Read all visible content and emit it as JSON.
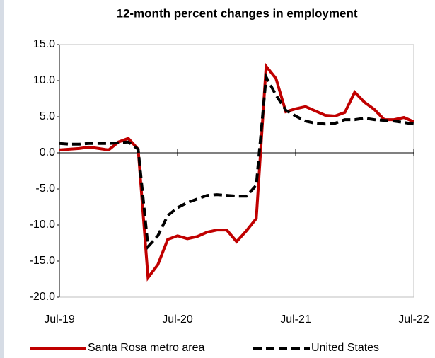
{
  "chart_data": {
    "type": "line",
    "title": "12-month percent changes in employment",
    "categories": [
      "Jul-19",
      null,
      null,
      null,
      null,
      null,
      null,
      null,
      null,
      null,
      null,
      null,
      "Jul-20",
      null,
      null,
      null,
      null,
      null,
      null,
      null,
      null,
      null,
      null,
      null,
      "Jul-21",
      null,
      null,
      null,
      null,
      null,
      null,
      null,
      null,
      null,
      null,
      null,
      "Jul-22"
    ],
    "series": [
      {
        "name": "Santa Rosa metro area",
        "color": "#c00000",
        "dash": "solid",
        "values": [
          0.4,
          0.5,
          0.6,
          0.8,
          0.6,
          0.4,
          1.5,
          2.0,
          0.5,
          -17.3,
          -15.5,
          -12.0,
          -11.5,
          -11.9,
          -11.6,
          -11.0,
          -10.7,
          -10.7,
          -12.3,
          -10.8,
          -9.1,
          12.0,
          10.3,
          5.7,
          6.1,
          6.4,
          5.8,
          5.2,
          5.1,
          5.6,
          8.4,
          7.0,
          6.0,
          4.6,
          4.6,
          4.9,
          4.3
        ]
      },
      {
        "name": "United States",
        "color": "#000000",
        "dash": "dashed",
        "values": [
          1.3,
          1.2,
          1.2,
          1.3,
          1.3,
          1.3,
          1.4,
          1.5,
          0.5,
          -13.0,
          -11.5,
          -8.7,
          -7.6,
          -6.9,
          -6.4,
          -5.9,
          -5.8,
          -5.9,
          -6.0,
          -6.0,
          -4.5,
          10.5,
          8.0,
          5.9,
          5.1,
          4.4,
          4.1,
          4.0,
          4.1,
          4.6,
          4.6,
          4.8,
          4.6,
          4.5,
          4.4,
          4.2,
          4.0
        ]
      }
    ],
    "ylim": [
      -20,
      15
    ],
    "yticks": [
      {
        "value": -20,
        "label": "-20.0"
      },
      {
        "value": -15,
        "label": "-15.0"
      },
      {
        "value": -10,
        "label": "-10.0"
      },
      {
        "value": -5,
        "label": "-5.0"
      },
      {
        "value": 0,
        "label": "0.0"
      },
      {
        "value": 5,
        "label": "5.0"
      },
      {
        "value": 10,
        "label": "10.0"
      },
      {
        "value": 15,
        "label": "15.0"
      }
    ],
    "grid": false,
    "legend": "bottom"
  }
}
